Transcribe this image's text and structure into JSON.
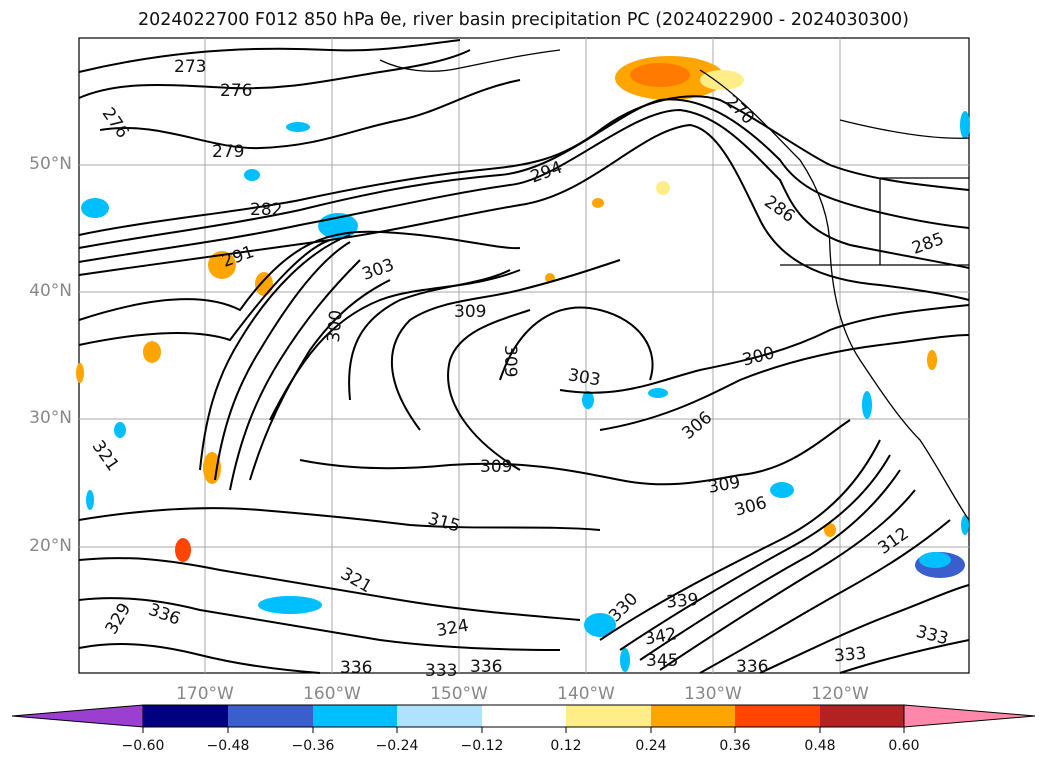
{
  "title": "2024022700 F012 850 hPa θe, river basin precipitation PC (2024022900 - 2024030300)",
  "lat_labels": [
    "50°N",
    "40°N",
    "30°N",
    "20°N"
  ],
  "lon_labels": [
    "170°W",
    "160°W",
    "150°W",
    "140°W",
    "130°W",
    "120°W"
  ],
  "contour_labels": [
    "273",
    "276",
    "276",
    "279",
    "282",
    "294",
    "285",
    "286",
    "270",
    "303",
    "309",
    "309",
    "300",
    "303",
    "306",
    "300",
    "309",
    "309",
    "306",
    "315",
    "321",
    "312",
    "321",
    "324",
    "336",
    "333",
    "336",
    "339",
    "342",
    "345",
    "336",
    "333",
    "330",
    "329",
    "336",
    "333",
    "291"
  ],
  "colorbar": {
    "ticks": [
      "−0.60",
      "−0.48",
      "−0.36",
      "−0.24",
      "−0.12",
      "0.12",
      "0.24",
      "0.36",
      "0.48",
      "0.60"
    ],
    "colors": [
      "#9a3fd0",
      "#000080",
      "#3a5fcd",
      "#00bfff",
      "#b0e2ff",
      "#ffffff",
      "#ffee88",
      "#ffa500",
      "#ff4500",
      "#b22222",
      "#ff88aa"
    ]
  }
}
